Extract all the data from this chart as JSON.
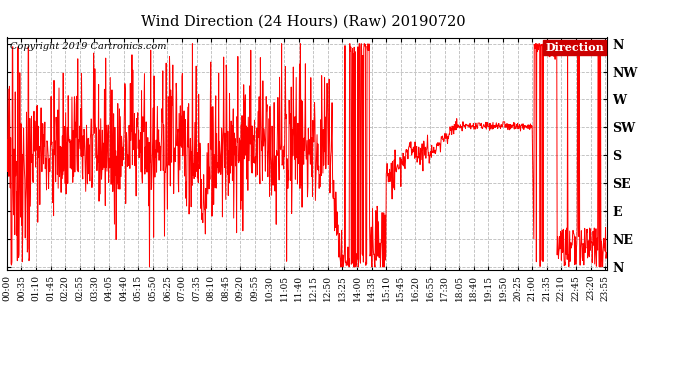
{
  "title": "Wind Direction (24 Hours) (Raw) 20190720",
  "copyright": "Copyright 2019 Cartronics.com",
  "line_color": "#ff0000",
  "background_color": "#ffffff",
  "grid_color": "#bbbbbb",
  "legend_label": "Direction",
  "legend_bg": "#cc0000",
  "legend_fg": "#ffffff",
  "ytick_labels": [
    "N",
    "NE",
    "E",
    "SE",
    "S",
    "SW",
    "W",
    "NW",
    "N"
  ],
  "ytick_values": [
    0,
    45,
    90,
    135,
    180,
    225,
    270,
    315,
    360
  ],
  "ylim": [
    -5,
    370
  ],
  "total_minutes": 1440,
  "tick_step_minutes": 35
}
